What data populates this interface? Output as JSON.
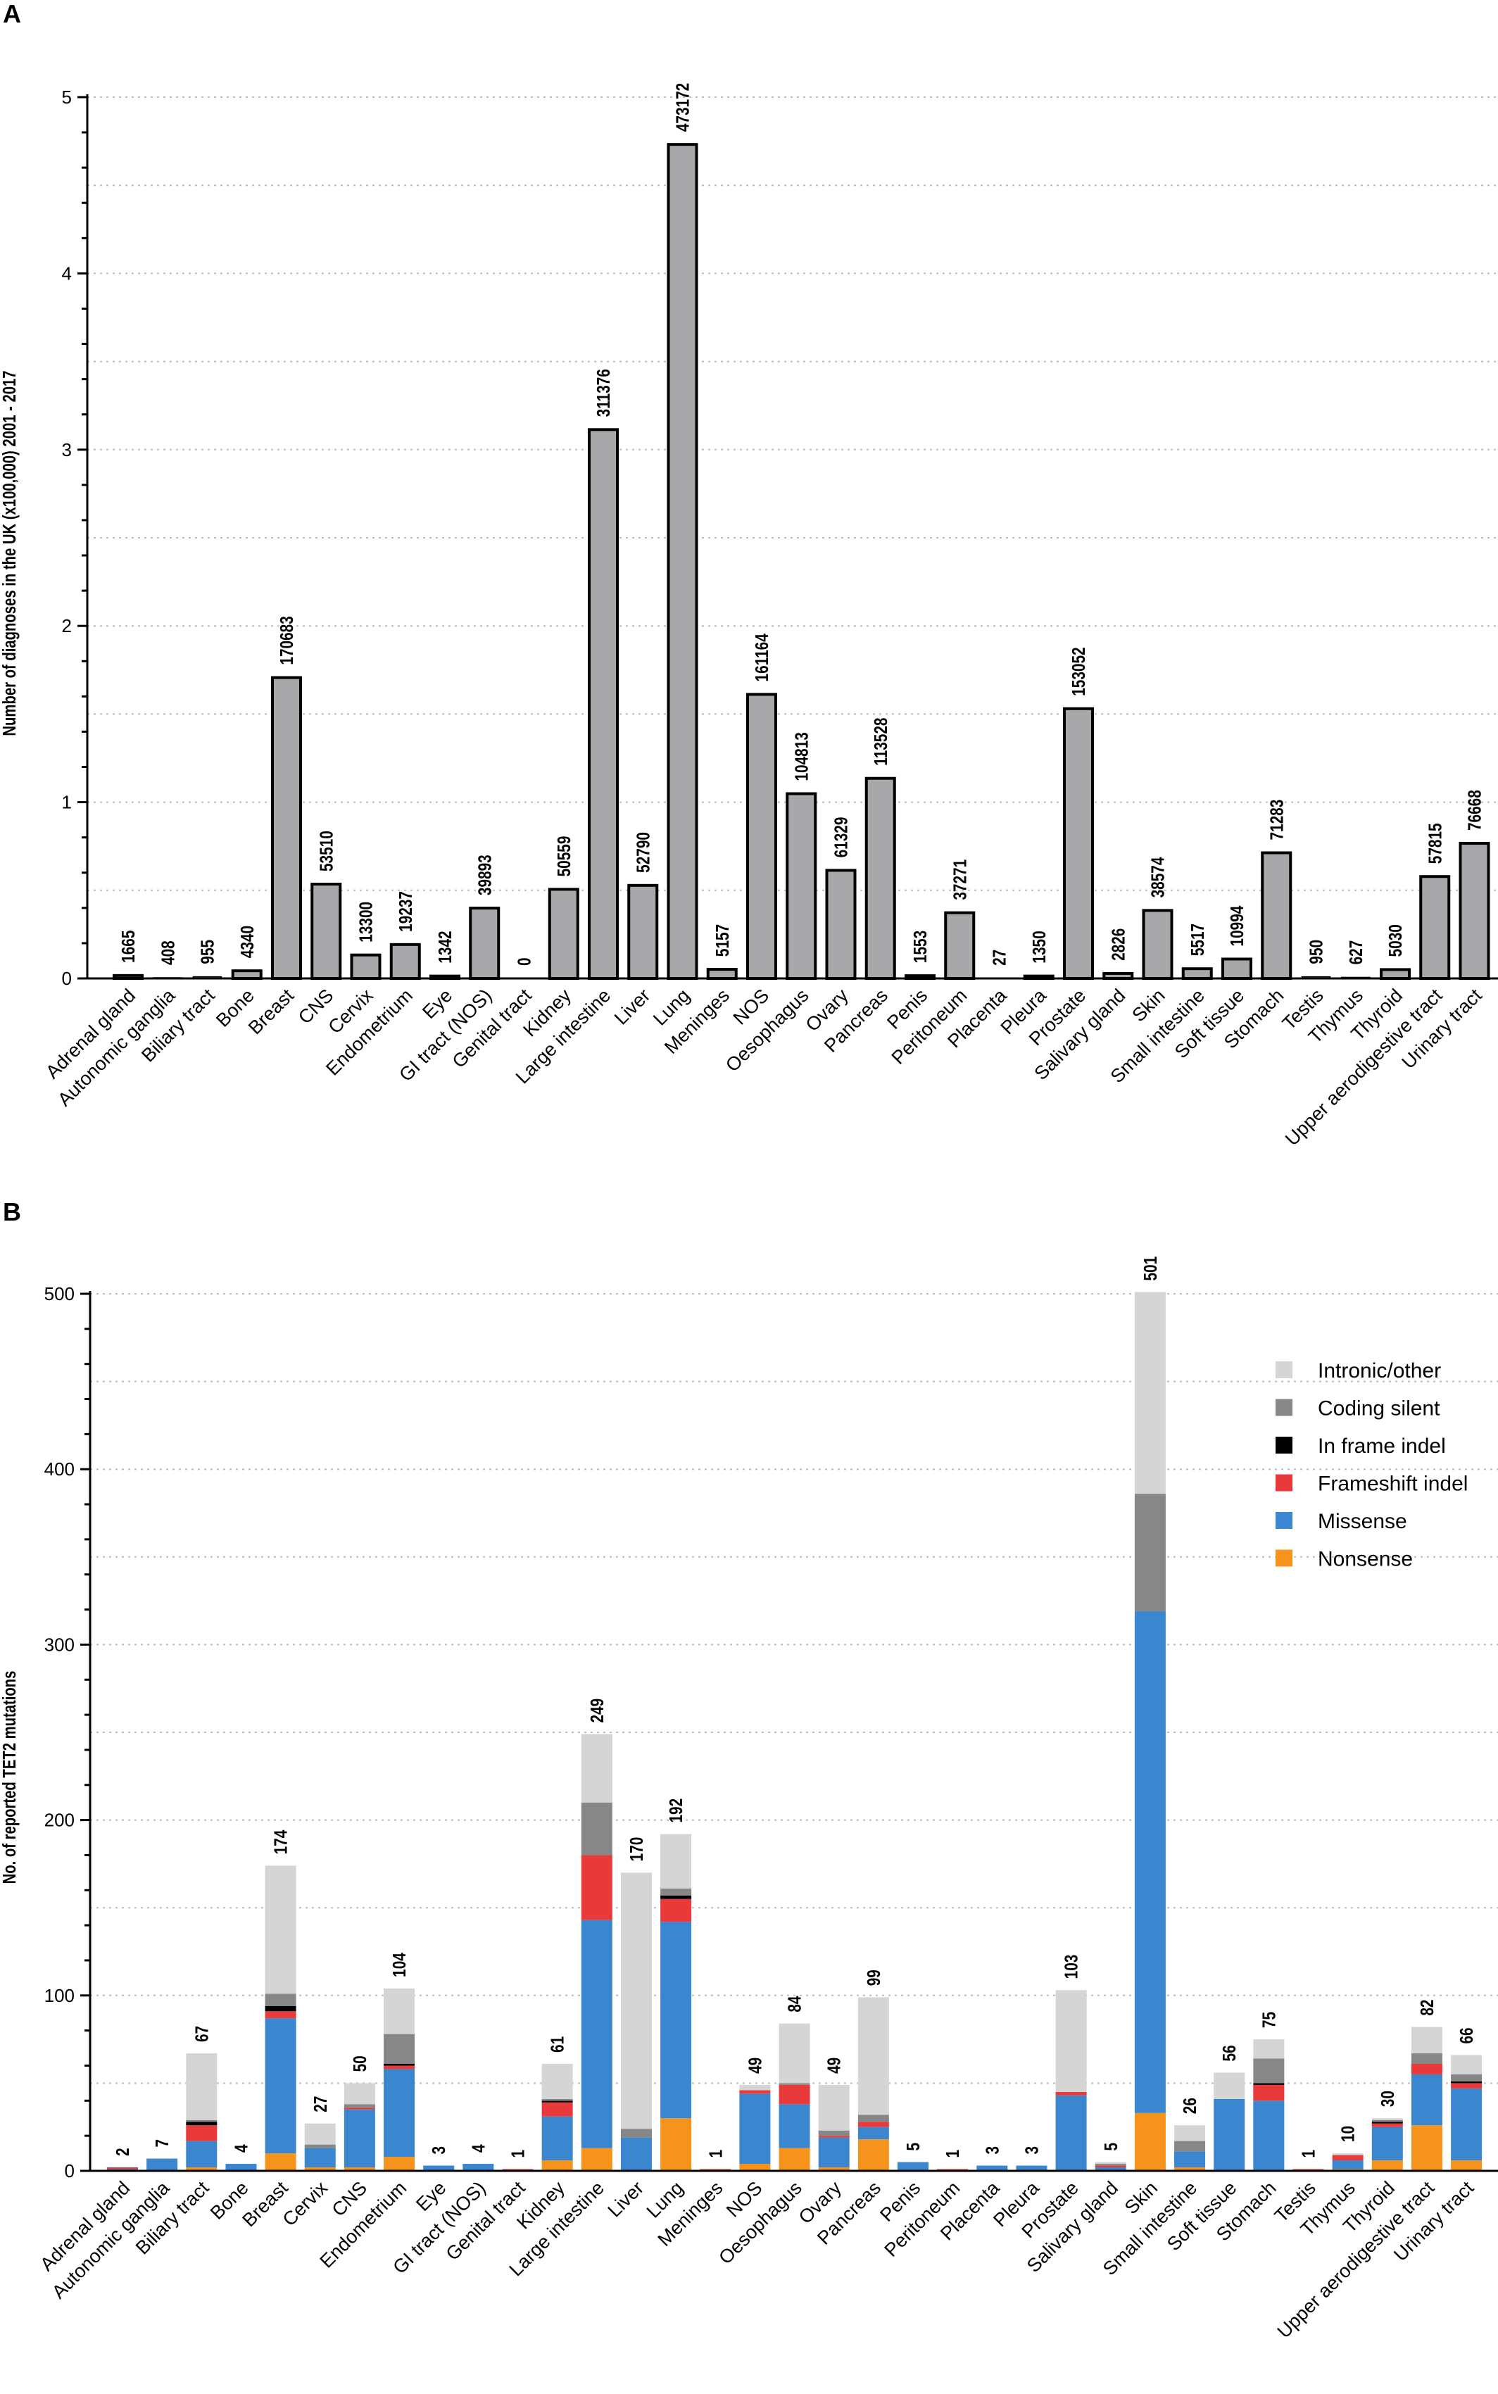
{
  "colors": {
    "bar_a": "#a8a8aa",
    "intronic_other": "#d5d5d5",
    "coding_silent": "#878787",
    "in_frame_indel": "#000000",
    "frameshift_indel": "#e83a3a",
    "missense": "#3a87cf",
    "nonsense": "#f6931d",
    "gridline": "#bdbdbd"
  },
  "chart_data": [
    {
      "panel": "A",
      "type": "bar",
      "title": "",
      "ylabel": "Number of diagnoses in the UK (x100,000)  2001 - 2017",
      "xlabel": "",
      "ylim": [
        0,
        5
      ],
      "yticks": [
        "0",
        "1",
        "2",
        "3",
        "4",
        "5"
      ],
      "grid": true,
      "categories": [
        "Adrenal gland",
        "Autonomic ganglia",
        "Biliary tract",
        "Bone",
        "Breast",
        "CNS",
        "Cervix",
        "Endometrium",
        "Eye",
        "GI tract (NOS)",
        "Genital tract",
        "Kidney",
        "Large intestine",
        "Liver",
        "Lung",
        "Meninges",
        "NOS",
        "Oesophagus",
        "Ovary",
        "Pancreas",
        "Penis",
        "Peritoneum",
        "Placenta",
        "Pleura",
        "Prostate",
        "Salivary gland",
        "Skin",
        "Small intestine",
        "Soft tissue",
        "Stomach",
        "Testis",
        "Thymus",
        "Thyroid",
        "Upper aerodigestive tract",
        "Urinary tract"
      ],
      "values": [
        1665,
        408,
        955,
        4340,
        170683,
        53510,
        13300,
        19237,
        1342,
        39893,
        0,
        50559,
        311376,
        52790,
        473172,
        5157,
        161164,
        104813,
        61329,
        113528,
        1553,
        37271,
        27,
        1350,
        153052,
        2826,
        38574,
        5517,
        10994,
        71283,
        950,
        627,
        5030,
        57815,
        76668
      ],
      "labels": [
        "1665",
        "408",
        "955",
        "4340",
        "170683",
        "53510",
        "13300",
        "19237",
        "1342",
        "39893",
        "0",
        "50559",
        "311376",
        "52790",
        "473172",
        "5157",
        "161164",
        "104813",
        "61329",
        "113528",
        "1553",
        "37271",
        "27",
        "1350",
        "153052",
        "2826",
        "38574",
        "5517",
        "10994",
        "71283",
        "950",
        "627",
        "5030",
        "57815",
        "76668"
      ]
    },
    {
      "panel": "B",
      "type": "bar",
      "stacked": true,
      "title": "",
      "ylabel": "No. of reported TET2 mutations",
      "xlabel": "",
      "ylim": [
        0,
        500
      ],
      "yticks": [
        "0",
        "100",
        "200",
        "300",
        "400",
        "500"
      ],
      "grid": true,
      "legend_position": "top-right",
      "categories": [
        "Adrenal gland",
        "Autonomic ganglia",
        "Biliary tract",
        "Bone",
        "Breast",
        "Cervix",
        "CNS",
        "Endometrium",
        "Eye",
        "GI tract (NOS)",
        "Genital tract",
        "Kidney",
        "Large intestine",
        "Liver",
        "Lung",
        "Meninges",
        "NOS",
        "Oesophagus",
        "Ovary",
        "Pancreas",
        "Penis",
        "Peritoneum",
        "Placenta",
        "Pleura",
        "Prostate",
        "Salivary gland",
        "Skin",
        "Small intestine",
        "Soft tissue",
        "Stomach",
        "Testis",
        "Thymus",
        "Thyroid",
        "Upper aerodigestive tract",
        "Urinary tract"
      ],
      "totals": [
        "2",
        "7",
        "67",
        "4",
        "174",
        "27",
        "50",
        "104",
        "3",
        "4",
        "1",
        "61",
        "249",
        "170",
        "192",
        "1",
        "49",
        "84",
        "49",
        "99",
        "5",
        "1",
        "3",
        "3",
        "103",
        "5",
        "501",
        "26",
        "56",
        "75",
        "1",
        "10",
        "30",
        "82",
        "66"
      ],
      "series": [
        {
          "name": "Nonsense",
          "color_key": "nonsense",
          "values": [
            0,
            0,
            2,
            0,
            10,
            2,
            2,
            8,
            0,
            0,
            0,
            6,
            13,
            0,
            30,
            0,
            4,
            13,
            2,
            18,
            0,
            0,
            0,
            0,
            0,
            0,
            33,
            2,
            0,
            0,
            0,
            1,
            6,
            26,
            6
          ]
        },
        {
          "name": "Missense",
          "color_key": "missense",
          "values": [
            1,
            7,
            15,
            4,
            77,
            11,
            33,
            50,
            3,
            4,
            0,
            25,
            130,
            19,
            112,
            0,
            40,
            25,
            17,
            7,
            5,
            0,
            3,
            3,
            43,
            2,
            286,
            9,
            41,
            40,
            0,
            5,
            19,
            29,
            41
          ]
        },
        {
          "name": "Frameshift indel",
          "color_key": "frameshift_indel",
          "values": [
            1,
            0,
            9,
            0,
            4,
            0,
            1,
            2,
            0,
            0,
            1,
            8,
            37,
            0,
            13,
            1,
            2,
            11,
            1,
            3,
            0,
            1,
            0,
            0,
            2,
            1,
            0,
            0,
            0,
            9,
            1,
            3,
            2,
            6,
            3
          ]
        },
        {
          "name": "In frame indel",
          "color_key": "in_frame_indel",
          "values": [
            0,
            0,
            2,
            0,
            3,
            0,
            0,
            1,
            0,
            0,
            0,
            1,
            0,
            0,
            2,
            0,
            0,
            0,
            0,
            0,
            0,
            0,
            0,
            0,
            0,
            0,
            0,
            0,
            0,
            1,
            0,
            0,
            1,
            0,
            1
          ]
        },
        {
          "name": "Coding silent",
          "color_key": "coding_silent",
          "values": [
            0,
            0,
            1,
            0,
            7,
            2,
            2,
            17,
            0,
            0,
            0,
            1,
            30,
            5,
            4,
            0,
            0,
            1,
            3,
            4,
            0,
            0,
            0,
            0,
            0,
            1,
            67,
            6,
            0,
            14,
            0,
            0,
            1,
            6,
            4
          ]
        },
        {
          "name": "Intronic/other",
          "color_key": "intronic_other",
          "values": [
            0,
            0,
            38,
            0,
            73,
            12,
            12,
            26,
            0,
            0,
            0,
            20,
            39,
            146,
            31,
            0,
            3,
            34,
            26,
            67,
            0,
            0,
            0,
            0,
            58,
            1,
            115,
            9,
            15,
            11,
            0,
            1,
            1,
            15,
            11
          ]
        }
      ],
      "legend": [
        "Intronic/other",
        "Coding silent",
        "In frame indel",
        "Frameshift indel",
        "Missense",
        "Nonsense"
      ]
    }
  ]
}
